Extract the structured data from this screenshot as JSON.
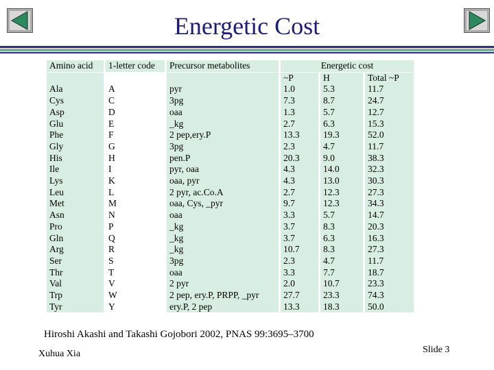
{
  "title": "Energetic Cost",
  "nav": {
    "prev_icon": "prev-slide-icon",
    "next_icon": "next-slide-icon"
  },
  "colors": {
    "title": "#1a1a80",
    "table_bg": "#d8eee2",
    "rule_dark": "#2a2a8a",
    "rule_green": "#7ab09a"
  },
  "table": {
    "headers": {
      "amino_acid": "Amino acid",
      "letter": "1-letter code",
      "precursor": "Precursor metabolites",
      "energetic_cost": "Energetic cost"
    },
    "subheaders": {
      "p": "~P",
      "h": "H",
      "total": "Total ~P"
    },
    "rows": [
      [
        "Ala",
        "A",
        "pyr",
        "1.0",
        "5.3",
        "11.7"
      ],
      [
        "Cys",
        "C",
        "3pg",
        "7.3",
        "8.7",
        "24.7"
      ],
      [
        "Asp",
        "D",
        "oaa",
        "1.3",
        "5.7",
        "12.7"
      ],
      [
        "Glu",
        "E",
        "_kg",
        "2.7",
        "6.3",
        "15.3"
      ],
      [
        "Phe",
        "F",
        "2 pep,ery.P",
        "13.3",
        "19.3",
        "52.0"
      ],
      [
        "Gly",
        "G",
        "3pg",
        "2.3",
        "4.7",
        "11.7"
      ],
      [
        "His",
        "H",
        "pen.P",
        "20.3",
        "9.0",
        "38.3"
      ],
      [
        "Ile",
        "I",
        "pyr, oaa",
        "4.3",
        "14.0",
        "32.3"
      ],
      [
        "Lys",
        "K",
        "oaa, pyr",
        "4.3",
        "13.0",
        "30.3"
      ],
      [
        "Leu",
        "L",
        "2 pyr, ac.Co.A",
        "2.7",
        "12.3",
        "27.3"
      ],
      [
        "Met",
        "M",
        "oaa, Cys, _pyr",
        "9.7",
        "12.3",
        "34.3"
      ],
      [
        "Asn",
        "N",
        "oaa",
        "3.3",
        "5.7",
        "14.7"
      ],
      [
        "Pro",
        "P",
        "_kg",
        "3.7",
        "8.3",
        "20.3"
      ],
      [
        "Gln",
        "Q",
        "_kg",
        "3.7",
        "6.3",
        "16.3"
      ],
      [
        "Arg",
        "R",
        "_kg",
        "10.7",
        "8.3",
        "27.3"
      ],
      [
        "Ser",
        "S",
        "3pg",
        "2.3",
        "4.7",
        "11.7"
      ],
      [
        "Thr",
        "T",
        "oaa",
        "3.3",
        "7.7",
        "18.7"
      ],
      [
        "Val",
        "V",
        "2 pyr",
        "2.0",
        "10.7",
        "23.3"
      ],
      [
        "Trp",
        "W",
        "2 pep, ery.P, PRPP, _pyr",
        "27.7",
        "23.3",
        "74.3"
      ],
      [
        "Tyr",
        "Y",
        "ery.P, 2 pep",
        "13.3",
        "18.3",
        "50.0"
      ]
    ]
  },
  "citation": "Hiroshi Akashi and Takashi Gojobori 2002, PNAS 99:3695–3700",
  "author": "Xuhua Xia",
  "slide_number": "Slide 3"
}
